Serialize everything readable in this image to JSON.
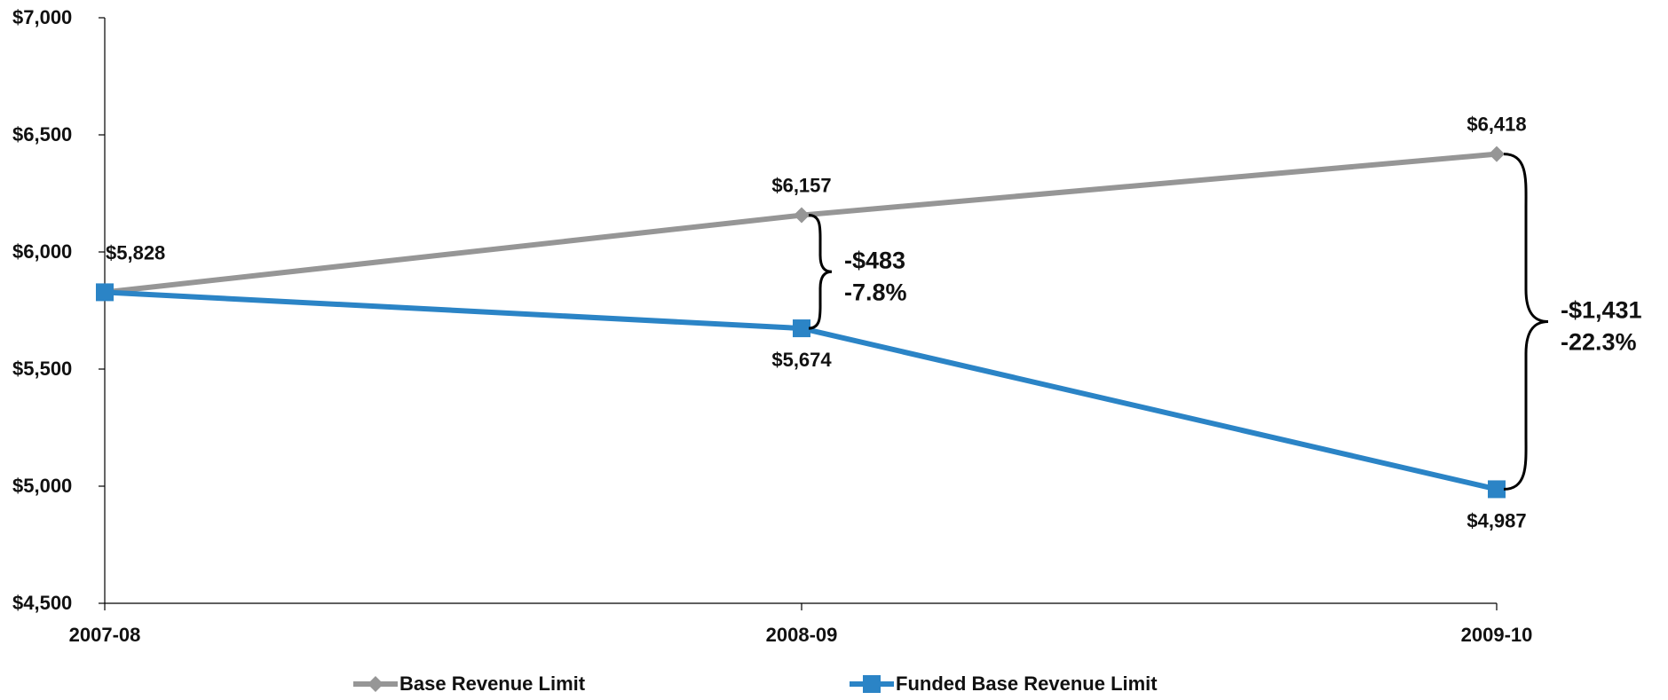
{
  "chart_data": {
    "type": "line",
    "title": "",
    "xlabel": "",
    "ylabel": "",
    "categories": [
      "2007-08",
      "2008-09",
      "2009-10"
    ],
    "ylim": [
      4500,
      7000
    ],
    "yticks": [
      4500,
      5000,
      5500,
      6000,
      6500,
      7000
    ],
    "ytick_labels": [
      "$4,500",
      "$5,000",
      "$5,500",
      "$6,000",
      "$6,500",
      "$7,000"
    ],
    "grid": false,
    "legend_position": "bottom",
    "series": [
      {
        "name": "Base Revenue Limit",
        "values": [
          5828,
          6157,
          6418
        ],
        "labels": [
          "",
          "$6,157",
          "$6,418"
        ],
        "color": "#969696",
        "marker": "diamond"
      },
      {
        "name": "Funded Base Revenue Limit",
        "values": [
          5828,
          5674,
          4987
        ],
        "labels": [
          "$5,828",
          "$5,674",
          "$4,987"
        ],
        "color": "#2b84c6",
        "marker": "square"
      }
    ],
    "annotations": [
      {
        "category_index": 1,
        "upper": 6157,
        "lower": 5674,
        "lines": [
          "-$483",
          "-7.8%"
        ]
      },
      {
        "category_index": 2,
        "upper": 6418,
        "lower": 4987,
        "lines": [
          "-$1,431",
          "-22.3%"
        ]
      }
    ]
  }
}
